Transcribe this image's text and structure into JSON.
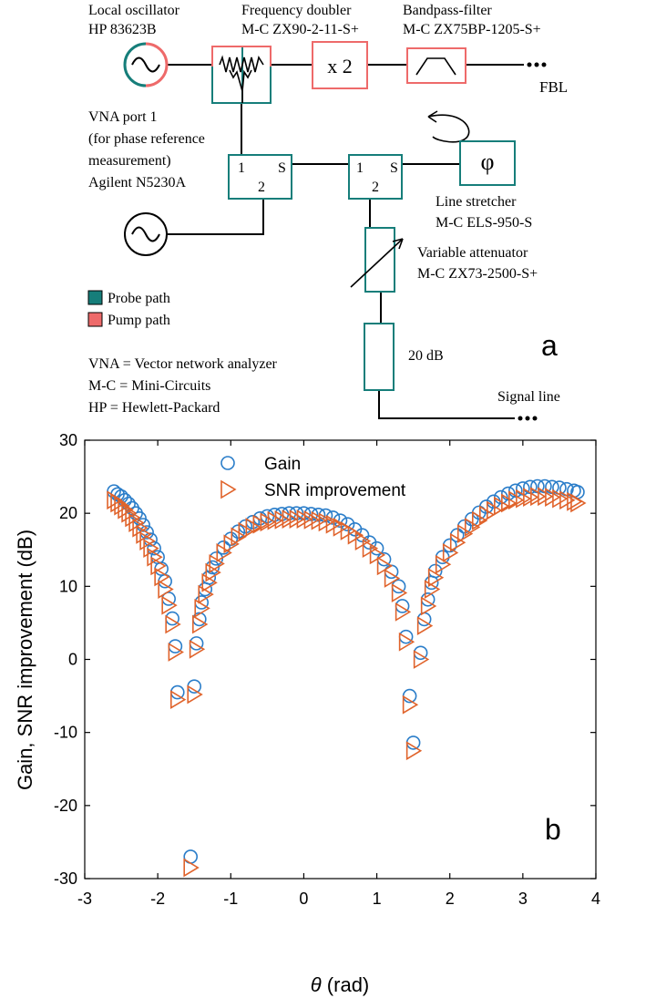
{
  "diagram": {
    "panel_label": "a",
    "local_oscillator": {
      "line1": "Local oscillator",
      "line2": "HP 83623B"
    },
    "freq_doubler": {
      "line1": "Frequency doubler",
      "line2": "M-C ZX90-2-11-S+",
      "symbol": "x 2"
    },
    "bandpass": {
      "line1": "Bandpass-filter",
      "line2": "M-C ZX75BP-1205-S+"
    },
    "fbl_label": "FBL",
    "vna_port": {
      "line1": "VNA port 1",
      "line2": "(for phase reference",
      "line3": "measurement)",
      "line4": "Agilent N5230A"
    },
    "coupler_ports": {
      "p1": "1",
      "ps": "S",
      "p2": "2"
    },
    "phi_symbol": "φ",
    "line_stretcher": {
      "line1": "Line stretcher",
      "line2": "M-C ELS-950-S"
    },
    "variable_attenuator": {
      "line1": "Variable attenuator",
      "line2": "M-C ZX73-2500-S+"
    },
    "fixed_attenuator": "20 dB",
    "signal_line": "Signal line",
    "legend": [
      {
        "label": "Probe path",
        "color": "#167e7a"
      },
      {
        "label": "Pump path",
        "color": "#ee6a6a"
      }
    ],
    "abbreviations": [
      "VNA = Vector network analyzer",
      "M-C = Mini-Circuits",
      "HP = Hewlett-Packard"
    ],
    "colors": {
      "probe": "#167e7a",
      "pump": "#ee6a6a"
    }
  },
  "chart_data": {
    "type": "scatter",
    "panel_label": "b",
    "xlabel_symbol": "θ",
    "xlabel_unit": " (rad)",
    "ylabel": "Gain, SNR improvement (dB)",
    "xlim": [
      -3,
      4
    ],
    "ylim": [
      -30,
      30
    ],
    "xticks": [
      -3,
      -2,
      -1,
      0,
      1,
      2,
      3,
      4
    ],
    "yticks": [
      -30,
      -20,
      -10,
      0,
      10,
      20,
      30
    ],
    "grid": false,
    "legend_position": "top-center",
    "series": [
      {
        "name": "Gain",
        "marker": "circle",
        "color": "#2a7dc9",
        "points": [
          [
            -2.6,
            23.0
          ],
          [
            -2.55,
            22.6
          ],
          [
            -2.5,
            22.3
          ],
          [
            -2.45,
            21.8
          ],
          [
            -2.4,
            21.3
          ],
          [
            -2.35,
            20.7
          ],
          [
            -2.3,
            20.0
          ],
          [
            -2.25,
            19.3
          ],
          [
            -2.2,
            18.4
          ],
          [
            -2.15,
            17.4
          ],
          [
            -2.1,
            16.4
          ],
          [
            -2.05,
            15.2
          ],
          [
            -2.0,
            14.0
          ],
          [
            -1.95,
            12.4
          ],
          [
            -1.9,
            10.7
          ],
          [
            -1.85,
            8.3
          ],
          [
            -1.8,
            5.6
          ],
          [
            -1.76,
            1.8
          ],
          [
            -1.73,
            -4.5
          ],
          [
            -1.55,
            -27.0
          ],
          [
            -1.5,
            -3.7
          ],
          [
            -1.47,
            2.2
          ],
          [
            -1.43,
            5.5
          ],
          [
            -1.4,
            7.8
          ],
          [
            -1.35,
            9.6
          ],
          [
            -1.3,
            11.2
          ],
          [
            -1.25,
            12.6
          ],
          [
            -1.2,
            13.8
          ],
          [
            -1.1,
            15.3
          ],
          [
            -1.0,
            16.5
          ],
          [
            -0.9,
            17.5
          ],
          [
            -0.8,
            18.2
          ],
          [
            -0.7,
            18.8
          ],
          [
            -0.6,
            19.3
          ],
          [
            -0.5,
            19.6
          ],
          [
            -0.4,
            19.8
          ],
          [
            -0.3,
            19.9
          ],
          [
            -0.2,
            20.0
          ],
          [
            -0.1,
            20.0
          ],
          [
            0.0,
            20.0
          ],
          [
            0.1,
            19.9
          ],
          [
            0.2,
            19.8
          ],
          [
            0.3,
            19.7
          ],
          [
            0.4,
            19.4
          ],
          [
            0.5,
            19.0
          ],
          [
            0.6,
            18.5
          ],
          [
            0.7,
            17.8
          ],
          [
            0.8,
            17.0
          ],
          [
            0.9,
            16.0
          ],
          [
            1.0,
            15.2
          ],
          [
            1.1,
            13.7
          ],
          [
            1.2,
            12.0
          ],
          [
            1.3,
            10.0
          ],
          [
            1.35,
            7.3
          ],
          [
            1.4,
            3.1
          ],
          [
            1.45,
            -5.0
          ],
          [
            1.5,
            -11.4
          ],
          [
            1.6,
            0.9
          ],
          [
            1.65,
            5.5
          ],
          [
            1.7,
            8.2
          ],
          [
            1.75,
            10.5
          ],
          [
            1.8,
            12.1
          ],
          [
            1.9,
            14.0
          ],
          [
            2.0,
            15.6
          ],
          [
            2.1,
            17.0
          ],
          [
            2.2,
            18.2
          ],
          [
            2.3,
            19.2
          ],
          [
            2.4,
            20.1
          ],
          [
            2.5,
            20.9
          ],
          [
            2.6,
            21.6
          ],
          [
            2.7,
            22.2
          ],
          [
            2.8,
            22.7
          ],
          [
            2.9,
            23.1
          ],
          [
            3.0,
            23.4
          ],
          [
            3.1,
            23.6
          ],
          [
            3.2,
            23.7
          ],
          [
            3.3,
            23.7
          ],
          [
            3.4,
            23.6
          ],
          [
            3.5,
            23.5
          ],
          [
            3.6,
            23.3
          ],
          [
            3.7,
            23.1
          ],
          [
            3.75,
            22.9
          ]
        ]
      },
      {
        "name": "SNR improvement",
        "marker": "triangle-right",
        "color": "#e0632b",
        "points": [
          [
            -2.6,
            21.8
          ],
          [
            -2.55,
            21.4
          ],
          [
            -2.5,
            21.0
          ],
          [
            -2.45,
            20.5
          ],
          [
            -2.4,
            20.0
          ],
          [
            -2.35,
            19.4
          ],
          [
            -2.3,
            18.7
          ],
          [
            -2.25,
            18.0
          ],
          [
            -2.2,
            17.1
          ],
          [
            -2.15,
            16.2
          ],
          [
            -2.1,
            15.2
          ],
          [
            -2.05,
            14.0
          ],
          [
            -2.0,
            12.8
          ],
          [
            -1.95,
            11.3
          ],
          [
            -1.9,
            9.6
          ],
          [
            -1.85,
            7.4
          ],
          [
            -1.8,
            4.8
          ],
          [
            -1.76,
            1.0
          ],
          [
            -1.73,
            -5.5
          ],
          [
            -1.55,
            -28.5
          ],
          [
            -1.5,
            -4.8
          ],
          [
            -1.47,
            1.4
          ],
          [
            -1.43,
            4.8
          ],
          [
            -1.4,
            7.0
          ],
          [
            -1.35,
            8.9
          ],
          [
            -1.3,
            10.5
          ],
          [
            -1.25,
            11.9
          ],
          [
            -1.2,
            13.1
          ],
          [
            -1.1,
            14.6
          ],
          [
            -1.0,
            15.8
          ],
          [
            -0.9,
            16.8
          ],
          [
            -0.8,
            17.5
          ],
          [
            -0.7,
            18.1
          ],
          [
            -0.6,
            18.5
          ],
          [
            -0.5,
            18.8
          ],
          [
            -0.4,
            19.0
          ],
          [
            -0.3,
            19.1
          ],
          [
            -0.2,
            19.2
          ],
          [
            -0.1,
            19.2
          ],
          [
            0.0,
            19.2
          ],
          [
            0.1,
            19.1
          ],
          [
            0.2,
            19.0
          ],
          [
            0.3,
            18.8
          ],
          [
            0.4,
            18.5
          ],
          [
            0.5,
            18.1
          ],
          [
            0.6,
            17.6
          ],
          [
            0.7,
            17.0
          ],
          [
            0.8,
            16.2
          ],
          [
            0.9,
            15.2
          ],
          [
            1.0,
            14.3
          ],
          [
            1.1,
            12.8
          ],
          [
            1.2,
            11.1
          ],
          [
            1.3,
            9.1
          ],
          [
            1.35,
            6.5
          ],
          [
            1.4,
            2.4
          ],
          [
            1.45,
            -6.2
          ],
          [
            1.5,
            -12.5
          ],
          [
            1.6,
            0.0
          ],
          [
            1.65,
            4.6
          ],
          [
            1.7,
            7.3
          ],
          [
            1.75,
            9.6
          ],
          [
            1.8,
            11.2
          ],
          [
            1.9,
            13.0
          ],
          [
            2.0,
            14.6
          ],
          [
            2.1,
            16.0
          ],
          [
            2.2,
            17.2
          ],
          [
            2.3,
            18.1
          ],
          [
            2.4,
            19.0
          ],
          [
            2.5,
            19.8
          ],
          [
            2.6,
            20.4
          ],
          [
            2.7,
            21.0
          ],
          [
            2.8,
            21.4
          ],
          [
            2.9,
            21.8
          ],
          [
            3.0,
            22.0
          ],
          [
            3.1,
            22.2
          ],
          [
            3.2,
            22.3
          ],
          [
            3.3,
            22.3
          ],
          [
            3.4,
            22.2
          ],
          [
            3.5,
            22.0
          ],
          [
            3.6,
            21.8
          ],
          [
            3.7,
            21.6
          ],
          [
            3.75,
            21.4
          ]
        ]
      }
    ]
  }
}
